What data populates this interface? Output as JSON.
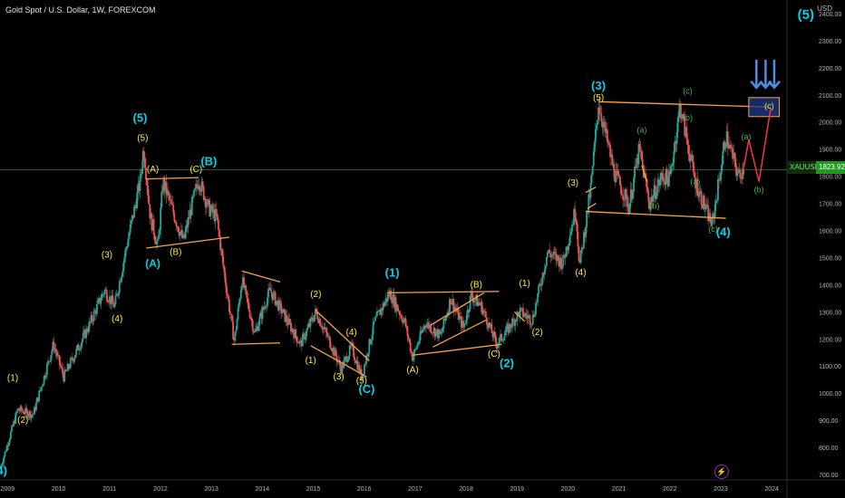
{
  "header": {
    "title": "Gold Spot / U.S. Dollar, 1W, FOREXCOM",
    "currency": "USD",
    "symbol_tag": "XAUUSD",
    "price_tag": "1823.92",
    "corner_label": "(5)"
  },
  "chart_data": {
    "type": "candlestick",
    "title": "Gold Spot / U.S. Dollar, 1W, FOREXCOM",
    "ylim": [
      680,
      2450
    ],
    "xlim": [
      2008.85,
      2024.3
    ],
    "x_ticks": [
      "2009",
      "2010",
      "2011",
      "2012",
      "2013",
      "2014",
      "2015",
      "2016",
      "2017",
      "2018",
      "2019",
      "2020",
      "2021",
      "2022",
      "2023",
      "2024"
    ],
    "y_ticks": [
      "2400.00",
      "2300.00",
      "2200.00",
      "2100.00",
      "2000.00",
      "1900.00",
      "1800.00",
      "1700.00",
      "1600.00",
      "1500.00",
      "1400.00",
      "1300.00",
      "1200.00",
      "1100.00",
      "1000.00",
      "900.00",
      "800.00",
      "700.00"
    ],
    "current_price": 1823.92,
    "price_path": [
      [
        2008.85,
        720
      ],
      [
        2009.2,
        940
      ],
      [
        2009.5,
        920
      ],
      [
        2009.9,
        1180
      ],
      [
        2010.1,
        1060
      ],
      [
        2010.6,
        1250
      ],
      [
        2010.9,
        1380
      ],
      [
        2011.1,
        1320
      ],
      [
        2011.3,
        1510
      ],
      [
        2011.6,
        1780
      ],
      [
        2011.67,
        1910
      ],
      [
        2011.8,
        1650
      ],
      [
        2011.95,
        1540
      ],
      [
        2012.05,
        1780
      ],
      [
        2012.3,
        1640
      ],
      [
        2012.45,
        1560
      ],
      [
        2012.6,
        1680
      ],
      [
        2012.75,
        1790
      ],
      [
        2012.95,
        1680
      ],
      [
        2013.1,
        1650
      ],
      [
        2013.3,
        1380
      ],
      [
        2013.45,
        1190
      ],
      [
        2013.6,
        1420
      ],
      [
        2013.85,
        1220
      ],
      [
        2014.15,
        1380
      ],
      [
        2014.45,
        1280
      ],
      [
        2014.75,
        1180
      ],
      [
        2015.05,
        1300
      ],
      [
        2015.3,
        1200
      ],
      [
        2015.55,
        1090
      ],
      [
        2015.75,
        1170
      ],
      [
        2015.95,
        1060
      ],
      [
        2016.2,
        1260
      ],
      [
        2016.5,
        1370
      ],
      [
        2016.8,
        1260
      ],
      [
        2016.95,
        1130
      ],
      [
        2017.2,
        1260
      ],
      [
        2017.5,
        1210
      ],
      [
        2017.7,
        1350
      ],
      [
        2017.95,
        1240
      ],
      [
        2018.1,
        1360
      ],
      [
        2018.3,
        1320
      ],
      [
        2018.6,
        1180
      ],
      [
        2018.8,
        1230
      ],
      [
        2019.05,
        1300
      ],
      [
        2019.3,
        1270
      ],
      [
        2019.6,
        1520
      ],
      [
        2019.9,
        1480
      ],
      [
        2020.15,
        1680
      ],
      [
        2020.23,
        1470
      ],
      [
        2020.45,
        1760
      ],
      [
        2020.6,
        2070
      ],
      [
        2020.9,
        1820
      ],
      [
        2021.2,
        1690
      ],
      [
        2021.4,
        1900
      ],
      [
        2021.6,
        1700
      ],
      [
        2021.85,
        1800
      ],
      [
        2022.0,
        1790
      ],
      [
        2022.2,
        2060
      ],
      [
        2022.5,
        1780
      ],
      [
        2022.7,
        1680
      ],
      [
        2022.83,
        1620
      ],
      [
        2023.1,
        1950
      ],
      [
        2023.35,
        1800
      ],
      [
        2023.45,
        1830
      ]
    ],
    "projection_path": [
      [
        2023.45,
        1830
      ],
      [
        2023.55,
        1935
      ],
      [
        2023.75,
        1780
      ],
      [
        2023.98,
        2050
      ]
    ],
    "lines": [
      {
        "name": "wave-4-channel-top",
        "from": [
          2011.72,
          1790
        ],
        "to": [
          2012.75,
          1795
        ]
      },
      {
        "name": "wave-4-channel-bottom",
        "from": [
          2011.72,
          1535
        ],
        "to": [
          2013.35,
          1575
        ]
      },
      {
        "name": "2013-range-top",
        "from": [
          2013.6,
          1450
        ],
        "to": [
          2014.35,
          1410
        ]
      },
      {
        "name": "2013-range-bottom",
        "from": [
          2013.4,
          1180
        ],
        "to": [
          2014.35,
          1185
        ]
      },
      {
        "name": "2015-wedge-top",
        "from": [
          2015.05,
          1305
        ],
        "to": [
          2016.1,
          1120
        ]
      },
      {
        "name": "2015-wedge-bottom",
        "from": [
          2014.95,
          1175
        ],
        "to": [
          2016.05,
          1060
        ]
      },
      {
        "name": "2017-flag-top",
        "from": [
          2016.45,
          1370
        ],
        "to": [
          2018.65,
          1375
        ]
      },
      {
        "name": "2017-flag-bottom",
        "from": [
          2016.95,
          1140
        ],
        "to": [
          2018.7,
          1180
        ]
      },
      {
        "name": "2017-wedge-upper",
        "from": [
          2017.3,
          1250
        ],
        "to": [
          2018.35,
          1370
        ]
      },
      {
        "name": "2017-wedge-lower",
        "from": [
          2017.35,
          1170
        ],
        "to": [
          2018.4,
          1270
        ]
      },
      {
        "name": "2019-small",
        "from": [
          2018.95,
          1300
        ],
        "to": [
          2019.15,
          1265
        ]
      },
      {
        "name": "wave-4-range-top",
        "from": [
          2020.6,
          2075
        ],
        "to": [
          2023.95,
          2055
        ]
      },
      {
        "name": "wave-4-range-bottom",
        "from": [
          2020.35,
          1670
        ],
        "to": [
          2023.1,
          1645
        ]
      },
      {
        "name": "2020-small-1",
        "from": [
          2020.35,
          1740
        ],
        "to": [
          2020.55,
          1760
        ]
      },
      {
        "name": "2020-small-2",
        "from": [
          2020.38,
          1680
        ],
        "to": [
          2020.55,
          1700
        ]
      },
      {
        "name": "2021-small",
        "from": [
          2021.45,
          1840
        ],
        "to": [
          2021.55,
          1780
        ]
      }
    ],
    "target_zone": {
      "x": [
        2023.55,
        2024.15
      ],
      "y": [
        2020,
        2090
      ]
    },
    "target_arrows": [
      2023.7,
      2023.88,
      2024.05
    ],
    "labels": [
      {
        "text": "(4)",
        "x": 2008.85,
        "y": 700,
        "color": "#00d3e6",
        "size": 13
      },
      {
        "text": "(1)",
        "x": 2009.1,
        "y": 1045,
        "color": "#ffeb3b",
        "size": 10
      },
      {
        "text": "(2)",
        "x": 2009.3,
        "y": 890,
        "color": "#ffeb3b",
        "size": 10
      },
      {
        "text": "(3)",
        "x": 2010.95,
        "y": 1500,
        "color": "#ffeb3b",
        "size": 10
      },
      {
        "text": "(4)",
        "x": 2011.15,
        "y": 1265,
        "color": "#ffeb3b",
        "size": 10
      },
      {
        "text": "(5)",
        "x": 2011.65,
        "y": 1930,
        "color": "#ffeb3b",
        "size": 10
      },
      {
        "text": "(5)",
        "x": 2011.6,
        "y": 2000,
        "color": "#00d3e6",
        "size": 13
      },
      {
        "text": "(A)",
        "x": 2011.85,
        "y": 1815,
        "color": "#ffeb3b",
        "size": 10
      },
      {
        "text": "(A)",
        "x": 2011.85,
        "y": 1465,
        "color": "#00d3e6",
        "size": 12
      },
      {
        "text": "(B)",
        "x": 2012.3,
        "y": 1510,
        "color": "#ffeb3b",
        "size": 10
      },
      {
        "text": "(C)",
        "x": 2012.7,
        "y": 1815,
        "color": "#ffeb3b",
        "size": 10
      },
      {
        "text": "(B)",
        "x": 2012.95,
        "y": 1840,
        "color": "#00d3e6",
        "size": 13
      },
      {
        "text": "(2)",
        "x": 2015.05,
        "y": 1355,
        "color": "#ffeb3b",
        "size": 10
      },
      {
        "text": "(1)",
        "x": 2014.95,
        "y": 1110,
        "color": "#ffeb3b",
        "size": 10
      },
      {
        "text": "(3)",
        "x": 2015.5,
        "y": 1050,
        "color": "#ffeb3b",
        "size": 10
      },
      {
        "text": "(4)",
        "x": 2015.75,
        "y": 1215,
        "color": "#ffeb3b",
        "size": 10
      },
      {
        "text": "(5)",
        "x": 2015.95,
        "y": 1035,
        "color": "#ffeb3b",
        "size": 10
      },
      {
        "text": "(C)",
        "x": 2016.05,
        "y": 1000,
        "color": "#00d3e6",
        "size": 13
      },
      {
        "text": "(1)",
        "x": 2016.55,
        "y": 1430,
        "color": "#00d3e6",
        "size": 13
      },
      {
        "text": "(A)",
        "x": 2016.95,
        "y": 1075,
        "color": "#ffeb3b",
        "size": 10
      },
      {
        "text": "(B)",
        "x": 2018.2,
        "y": 1390,
        "color": "#ffeb3b",
        "size": 10
      },
      {
        "text": "(C)",
        "x": 2018.55,
        "y": 1135,
        "color": "#ffeb3b",
        "size": 10
      },
      {
        "text": "(2)",
        "x": 2018.8,
        "y": 1095,
        "color": "#00d3e6",
        "size": 13
      },
      {
        "text": "(1)",
        "x": 2019.15,
        "y": 1395,
        "color": "#ffeb3b",
        "size": 10
      },
      {
        "text": "(2)",
        "x": 2019.4,
        "y": 1215,
        "color": "#ffeb3b",
        "size": 10
      },
      {
        "text": "(3)",
        "x": 2020.1,
        "y": 1765,
        "color": "#ffeb3b",
        "size": 10
      },
      {
        "text": "(4)",
        "x": 2020.25,
        "y": 1435,
        "color": "#ffeb3b",
        "size": 10
      },
      {
        "text": "(5)",
        "x": 2020.6,
        "y": 2080,
        "color": "#ffeb3b",
        "size": 10
      },
      {
        "text": "(3)",
        "x": 2020.6,
        "y": 2120,
        "color": "#00d3e6",
        "size": 13
      },
      {
        "text": "(a)",
        "x": 2021.45,
        "y": 1960,
        "color": "#4caf50",
        "size": 9
      },
      {
        "text": "(b)",
        "x": 2021.7,
        "y": 1680,
        "color": "#4caf50",
        "size": 9
      },
      {
        "text": "(c)",
        "x": 2022.35,
        "y": 2105,
        "color": "#4caf50",
        "size": 9
      },
      {
        "text": "(b)",
        "x": 2022.35,
        "y": 2005,
        "color": "#4caf50",
        "size": 9
      },
      {
        "text": "(a)",
        "x": 2022.5,
        "y": 1770,
        "color": "#4caf50",
        "size": 9
      },
      {
        "text": "(c)",
        "x": 2022.85,
        "y": 1595,
        "color": "#4caf50",
        "size": 9
      },
      {
        "text": "(4)",
        "x": 2023.05,
        "y": 1580,
        "color": "#00d3e6",
        "size": 13
      },
      {
        "text": "(a)",
        "x": 2023.5,
        "y": 1935,
        "color": "#4caf50",
        "size": 9
      },
      {
        "text": "(b)",
        "x": 2023.75,
        "y": 1740,
        "color": "#4caf50",
        "size": 9
      },
      {
        "text": "(c)",
        "x": 2023.95,
        "y": 2050,
        "color": "#ffeb3b",
        "size": 9
      }
    ],
    "colors": {
      "up": "#26a69a",
      "down": "#ef5350",
      "trendline": "#f7a440",
      "wave_cyan": "#00d3e6",
      "wave_yellow": "#ffeb3b",
      "wave_green": "#4caf50",
      "projection": "#f23645",
      "target_fill": "#1e3a8a",
      "arrow": "#4a90e2",
      "price_line": "#2e7d32"
    }
  }
}
